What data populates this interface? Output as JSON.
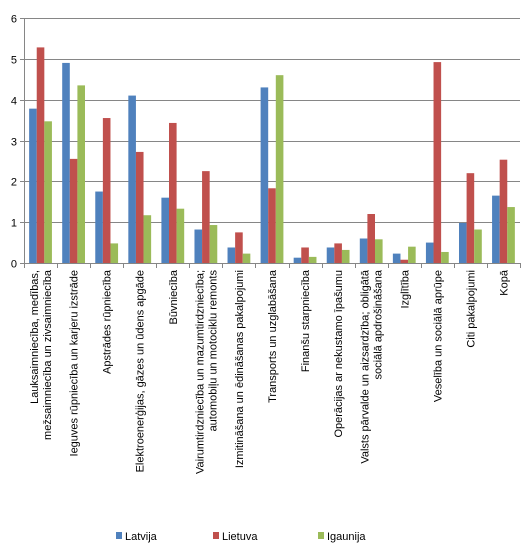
{
  "chart_data": {
    "type": "bar",
    "title": "",
    "xlabel": "",
    "ylabel": "",
    "ylim": [
      0,
      6
    ],
    "yticks": [
      0,
      1,
      2,
      3,
      4,
      5,
      6
    ],
    "grid": true,
    "legend_position": "bottom",
    "categories": [
      [
        "Lauksaimniecība, medības,",
        "mežsaimniecība un zivsaimniecība"
      ],
      [
        "Ieguves rūpniecība un karjeru izstrāde"
      ],
      [
        "Apstrādes rūpniecība"
      ],
      [
        "Elektroenerģijas, gāzes un ūdens apgāde"
      ],
      [
        "Būvniecība"
      ],
      [
        "Vairumtirdzniecība un mazumtirdzniecība;",
        "automobiļu un motociklu remonts"
      ],
      [
        "Izmitināšana un ēdināšanas pakalpojumi"
      ],
      [
        "Transports un uzglabāšana"
      ],
      [
        "Finanšu starpniecība"
      ],
      [
        "Operācijas ar nekustamo īpašumu"
      ],
      [
        "Valsts pārvalde un aizsardzība; obligātā",
        "sociālā apdrošināšana"
      ],
      [
        "Izglītība"
      ],
      [
        "Veselība un sociālā aprūpe"
      ],
      [
        "Citi pakalpojumi"
      ],
      [
        "Kopā"
      ]
    ],
    "series": [
      {
        "name": "Latvija",
        "color": "#4F81BD",
        "values": [
          3.78,
          4.9,
          1.75,
          4.1,
          1.6,
          0.82,
          0.38,
          4.3,
          0.13,
          0.38,
          0.6,
          0.23,
          0.5,
          0.98,
          1.65
        ]
      },
      {
        "name": "Lietuva",
        "color": "#C0504D",
        "values": [
          5.28,
          2.55,
          3.55,
          2.72,
          3.43,
          2.25,
          0.75,
          1.83,
          0.38,
          0.48,
          1.2,
          0.08,
          4.92,
          2.2,
          2.53
        ]
      },
      {
        "name": "Igaunija",
        "color": "#9BBB59",
        "values": [
          3.47,
          4.35,
          0.48,
          1.17,
          1.33,
          0.93,
          0.23,
          4.6,
          0.15,
          0.32,
          0.58,
          0.4,
          0.27,
          0.82,
          1.37
        ]
      }
    ]
  }
}
